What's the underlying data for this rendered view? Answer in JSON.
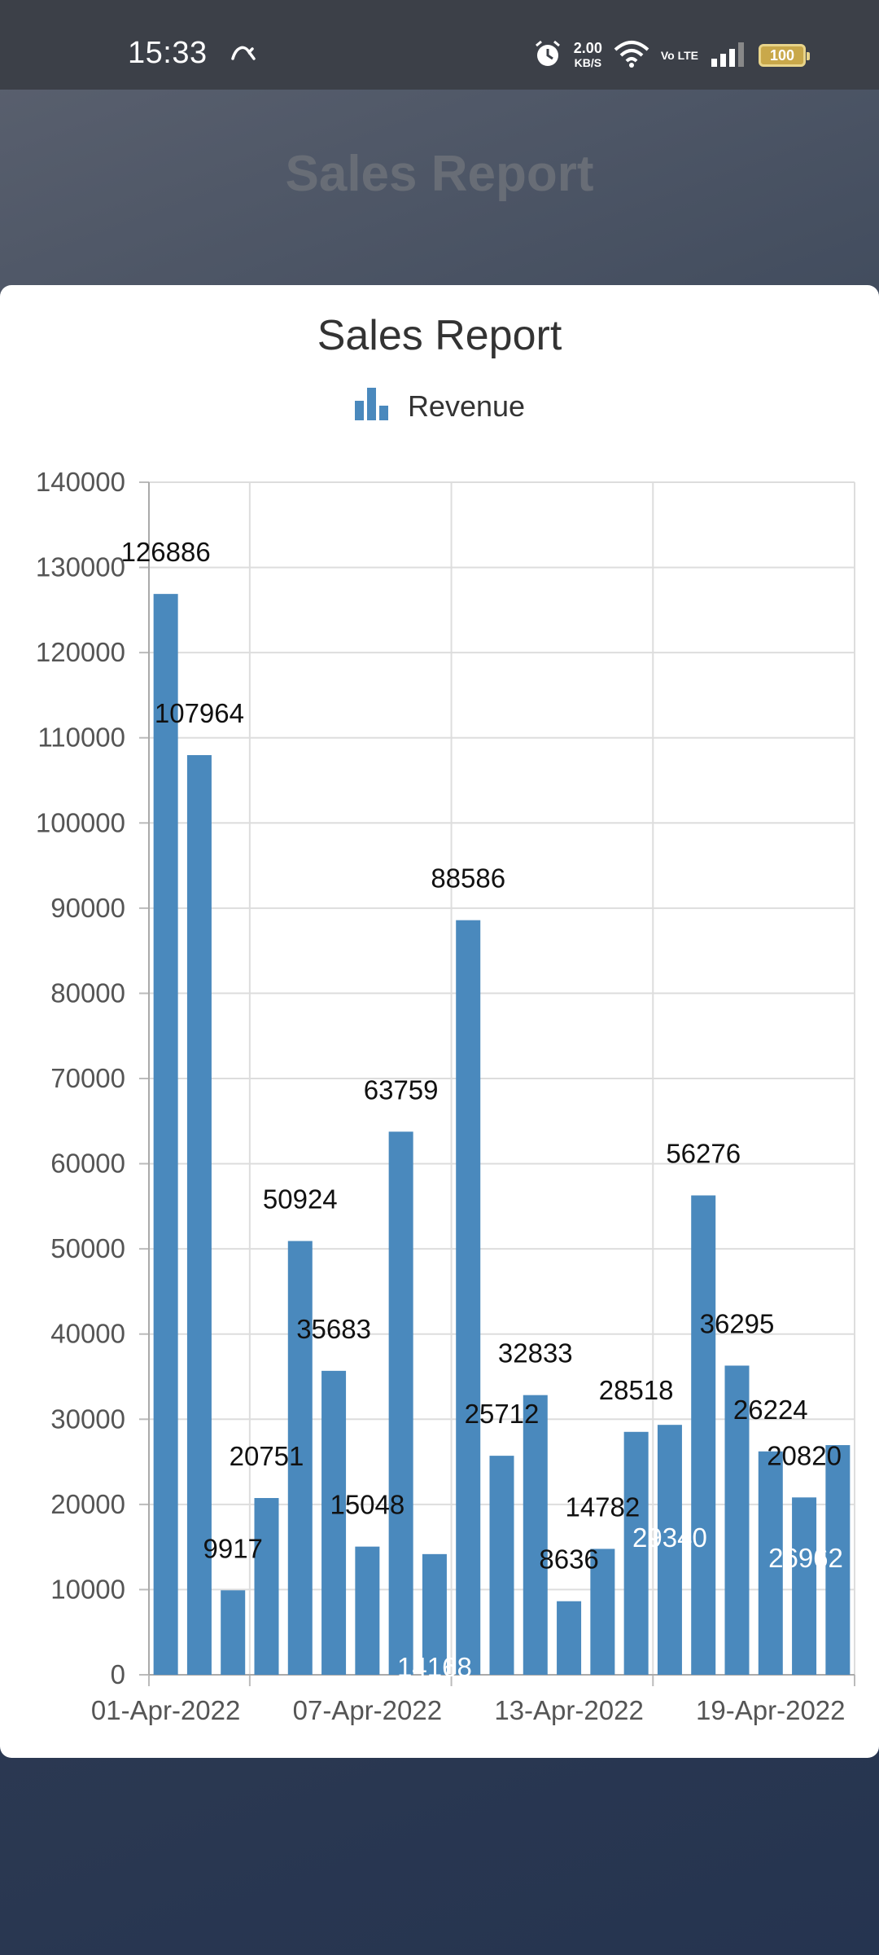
{
  "status_bar": {
    "time": "15:33",
    "net_speed": "2.00",
    "net_speed_unit": "KB/S",
    "volte": "Vo LTE",
    "battery": "100",
    "icons": [
      "sync-icon",
      "alarm-icon",
      "wifi-icon",
      "signal-icon",
      "battery-icon"
    ]
  },
  "page": {
    "background_title": "Sales Report"
  },
  "chart_data": {
    "type": "bar",
    "title": "Sales Report",
    "series": [
      {
        "name": "Revenue",
        "color": "#4a89bd",
        "values": [
          126886,
          107964,
          9917,
          20751,
          50924,
          35683,
          15048,
          63759,
          14168,
          88586,
          25712,
          32833,
          8636,
          14782,
          28518,
          29340,
          56276,
          36295,
          26224,
          20820,
          26962
        ]
      }
    ],
    "x_tick_labels": [
      "01-Apr-2022",
      "07-Apr-2022",
      "13-Apr-2022",
      "19-Apr-2022"
    ],
    "y_tick_labels": [
      "0",
      "10000",
      "20000",
      "30000",
      "40000",
      "50000",
      "60000",
      "70000",
      "80000",
      "90000",
      "100000",
      "110000",
      "120000",
      "130000",
      "140000"
    ],
    "ylim": [
      0,
      140000
    ],
    "grid": true,
    "legend_position": "top-center",
    "xlabel": "",
    "ylabel": ""
  }
}
